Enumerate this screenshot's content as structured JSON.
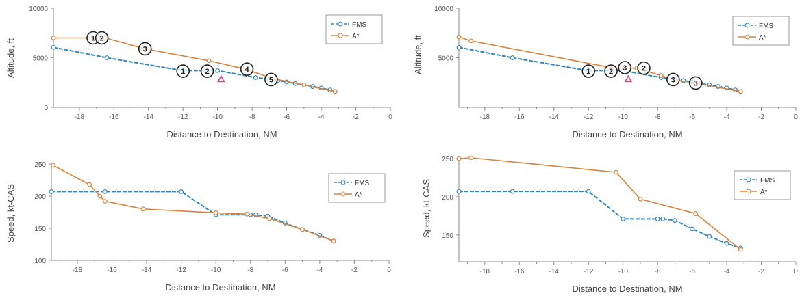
{
  "legend": {
    "fms": "FMS",
    "astar": "A*"
  },
  "colors": {
    "fms": "#2e86c1",
    "astar": "#d9823b",
    "waypoint_ring": "#222222",
    "marker": "#e0407a",
    "axis": "#888888"
  },
  "chart_data": [
    {
      "id": "alt-left",
      "type": "line",
      "xlabel": "Distance to Destination, NM",
      "ylabel": "Altitude, ft",
      "xlim": [
        -19.5,
        0
      ],
      "ylim": [
        0,
        10000
      ],
      "xticks": [
        -18,
        -16,
        -14,
        -12,
        -10,
        -8,
        -6,
        -4,
        -2,
        0
      ],
      "yticks": [
        0,
        5000,
        10000
      ],
      "grid": false,
      "legend_position": "top-right",
      "series": [
        {
          "name": "FMS",
          "x": [
            -19.5,
            -16.4,
            -12,
            -10,
            -7.8,
            -7,
            -6.5,
            -6,
            -5.5,
            -5,
            -4.5,
            -4,
            -3.5,
            -3.2
          ],
          "y": [
            6050,
            5000,
            3700,
            3700,
            3000,
            2850,
            2700,
            2550,
            2400,
            2250,
            2100,
            1950,
            1750,
            1600
          ]
        },
        {
          "name": "A*",
          "x": [
            -19.5,
            -16.5,
            -14.2,
            -10.5,
            -8.5,
            -6.8,
            -5,
            -3.2
          ],
          "y": [
            7000,
            7000,
            5900,
            4700,
            3900,
            2900,
            2250,
            1600
          ]
        }
      ],
      "waypoints": [
        {
          "label": "1",
          "x": -17.2,
          "y": 7000
        },
        {
          "label": "2",
          "x": -16.7,
          "y": 7000
        },
        {
          "label": "3",
          "x": -14.2,
          "y": 5900
        },
        {
          "label": "4",
          "x": -8.3,
          "y": 3850
        },
        {
          "label": "5",
          "x": -6.9,
          "y": 2800
        },
        {
          "label": "1",
          "x": -12,
          "y": 3650
        },
        {
          "label": "2",
          "x": -10.6,
          "y": 3650
        }
      ],
      "markers": [
        {
          "x": -9.8,
          "y": 2800
        }
      ]
    },
    {
      "id": "alt-right",
      "type": "line",
      "xlabel": "Distance to Destination, NM",
      "ylabel": "Altitude, ft",
      "xlim": [
        -19.5,
        0
      ],
      "ylim": [
        0,
        10000
      ],
      "xticks": [
        -18,
        -16,
        -14,
        -12,
        -10,
        -8,
        -6,
        -4,
        -2,
        0
      ],
      "yticks": [
        5000,
        10000
      ],
      "grid": false,
      "legend_position": "top-right",
      "series": [
        {
          "name": "FMS",
          "x": [
            -19.5,
            -16.4,
            -12,
            -10,
            -7.8,
            -7,
            -6.5,
            -6,
            -5.5,
            -5,
            -4.5,
            -4,
            -3.5,
            -3.2
          ],
          "y": [
            6050,
            5000,
            3700,
            3700,
            3000,
            2850,
            2700,
            2550,
            2400,
            2250,
            2100,
            1950,
            1750,
            1600
          ]
        },
        {
          "name": "A*",
          "x": [
            -19.5,
            -18.8,
            -10.5,
            -9.2,
            -7.8,
            -7,
            -5.8,
            -3.2
          ],
          "y": [
            7100,
            6700,
            3950,
            3950,
            3200,
            2750,
            2450,
            1600
          ]
        }
      ],
      "waypoints": [
        {
          "label": "1",
          "x": -12,
          "y": 3650
        },
        {
          "label": "2",
          "x": -10.7,
          "y": 3650
        },
        {
          "label": "3",
          "x": -9.9,
          "y": 4000
        },
        {
          "label": "2",
          "x": -8.8,
          "y": 3950
        },
        {
          "label": "3",
          "x": -7.1,
          "y": 2800
        },
        {
          "label": "3",
          "x": -5.8,
          "y": 2450
        }
      ],
      "markers": [
        {
          "x": -9.7,
          "y": 2800
        }
      ]
    },
    {
      "id": "spd-left",
      "type": "line",
      "xlabel": "Distance to Destination, NM",
      "ylabel": "Speed, kt-CAS",
      "xlim": [
        -19.5,
        0
      ],
      "ylim": [
        100,
        250
      ],
      "xticks": [
        -18,
        -16,
        -14,
        -12,
        -10,
        -8,
        -6,
        -4,
        -2,
        0
      ],
      "yticks": [
        100,
        150,
        200,
        250
      ],
      "grid": false,
      "legend_position": "top-right",
      "series": [
        {
          "name": "FMS",
          "x": [
            -19.5,
            -16.4,
            -12,
            -10,
            -8,
            -7.7,
            -7,
            -6,
            -5,
            -4,
            -3.2
          ],
          "y": [
            207,
            207,
            207,
            171,
            171,
            171,
            169,
            158,
            148,
            139,
            130
          ]
        },
        {
          "name": "A*",
          "x": [
            -19.4,
            -17.3,
            -16.7,
            -16.4,
            -14.2,
            -10,
            -8.2,
            -6.9,
            -5,
            -3.2
          ],
          "y": [
            248,
            218,
            200,
            192,
            180,
            174,
            172,
            165,
            148,
            130
          ]
        }
      ]
    },
    {
      "id": "spd-right",
      "type": "line",
      "xlabel": "Distance to Destination, NM",
      "ylabel": "Speed, kt-CAS",
      "xlim": [
        -19.5,
        0
      ],
      "ylim": [
        115,
        250
      ],
      "xticks": [
        -18,
        -16,
        -14,
        -12,
        -10,
        -8,
        -6,
        -4,
        -2,
        0
      ],
      "yticks": [
        150,
        200,
        250
      ],
      "grid": false,
      "legend_position": "top-right",
      "series": [
        {
          "name": "FMS",
          "x": [
            -19.5,
            -16.4,
            -12,
            -10,
            -8,
            -7.7,
            -7,
            -6,
            -5,
            -4,
            -3.2
          ],
          "y": [
            207,
            207,
            207,
            171,
            171,
            171,
            169,
            158,
            148,
            139,
            133
          ]
        },
        {
          "name": "A*",
          "x": [
            -19.5,
            -18.8,
            -10.4,
            -9,
            -5.8,
            -3.2
          ],
          "y": [
            250,
            251,
            232,
            197,
            178,
            131
          ]
        }
      ]
    }
  ]
}
